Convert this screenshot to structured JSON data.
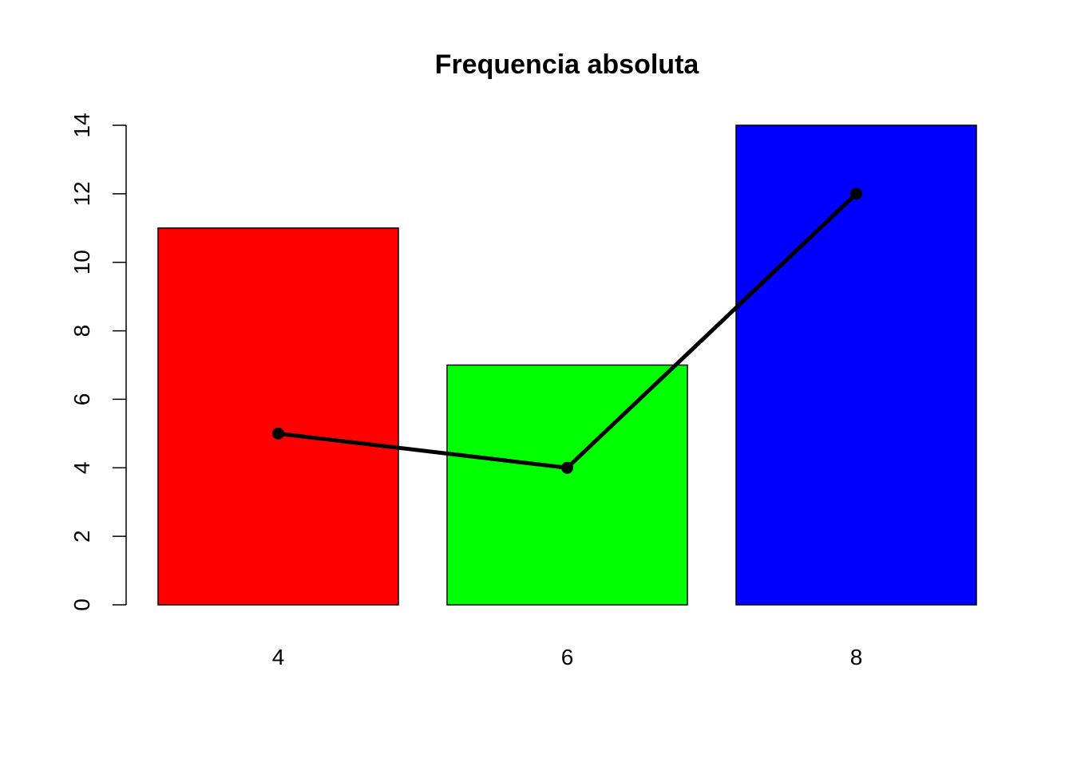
{
  "chart_data": {
    "type": "bar",
    "title": "Frequencia absoluta",
    "xlabel": "",
    "ylabel": "",
    "categories": [
      "4",
      "6",
      "8"
    ],
    "values": [
      11,
      7,
      14
    ],
    "bar_colors": [
      "#ff0000",
      "#00ff00",
      "#0000ff"
    ],
    "bar_border_color": "#000000",
    "ylim": [
      0,
      14
    ],
    "y_ticks": [
      0,
      2,
      4,
      6,
      8,
      10,
      12,
      14
    ],
    "grid": false,
    "legend": "none",
    "overlay_line": {
      "type": "line",
      "values": [
        5,
        4,
        12
      ],
      "color": "#000000",
      "markers": "filled-circle"
    }
  }
}
